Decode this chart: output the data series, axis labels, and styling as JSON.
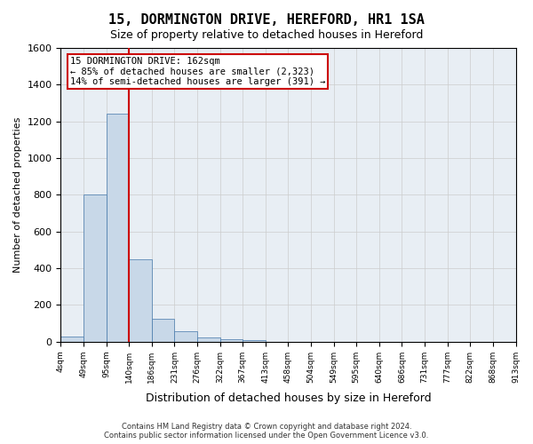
{
  "title": "15, DORMINGTON DRIVE, HEREFORD, HR1 1SA",
  "subtitle": "Size of property relative to detached houses in Hereford",
  "xlabel": "Distribution of detached houses by size in Hereford",
  "ylabel": "Number of detached properties",
  "footer_line1": "Contains HM Land Registry data © Crown copyright and database right 2024.",
  "footer_line2": "Contains public sector information licensed under the Open Government Licence v3.0.",
  "bins": [
    "4sqm",
    "49sqm",
    "95sqm",
    "140sqm",
    "186sqm",
    "231sqm",
    "276sqm",
    "322sqm",
    "367sqm",
    "413sqm",
    "458sqm",
    "504sqm",
    "549sqm",
    "595sqm",
    "640sqm",
    "686sqm",
    "731sqm",
    "777sqm",
    "822sqm",
    "868sqm",
    "913sqm"
  ],
  "bar_values": [
    30,
    800,
    1240,
    450,
    125,
    55,
    25,
    15,
    10,
    0,
    0,
    0,
    0,
    0,
    0,
    0,
    0,
    0,
    0,
    0
  ],
  "bar_color": "#c8d8e8",
  "bar_edge_color": "#4477aa",
  "grid_color": "#cccccc",
  "background_color": "#e8eef4",
  "vline_x": 3,
  "vline_color": "#cc0000",
  "annotation_text": "15 DORMINGTON DRIVE: 162sqm\n← 85% of detached houses are smaller (2,323)\n14% of semi-detached houses are larger (391) →",
  "annotation_box_color": "#ffffff",
  "annotation_box_edge": "#cc0000",
  "ylim": [
    0,
    1600
  ],
  "yticks": [
    0,
    200,
    400,
    600,
    800,
    1000,
    1200,
    1400,
    1600
  ]
}
